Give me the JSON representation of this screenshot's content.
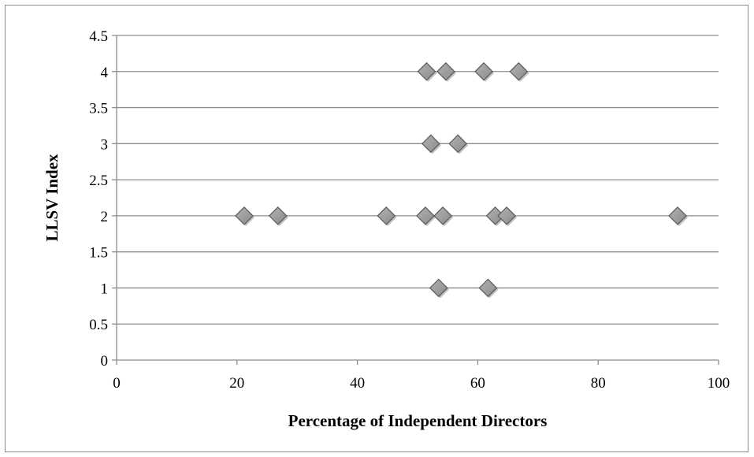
{
  "chart_data": {
    "type": "scatter",
    "title": "",
    "xlabel": "Percentage of Independent Directors",
    "ylabel": "LLSV Index",
    "xlim": [
      0,
      100
    ],
    "ylim": [
      0,
      4.5
    ],
    "xticks": [
      "0",
      "20",
      "40",
      "60",
      "80",
      "100"
    ],
    "yticks": [
      "0",
      "0.5",
      "1",
      "1.5",
      "2",
      "2.5",
      "3",
      "3.5",
      "4",
      "4.5"
    ],
    "grid": "horizontal",
    "legend": "none",
    "marker": "diamond",
    "marker_color": "#8a8a8a",
    "series": [
      {
        "points": [
          {
            "x": 51.5,
            "y": 4
          },
          {
            "x": 54.7,
            "y": 4
          },
          {
            "x": 61.0,
            "y": 4
          },
          {
            "x": 66.8,
            "y": 4
          },
          {
            "x": 52.2,
            "y": 3
          },
          {
            "x": 56.7,
            "y": 3
          },
          {
            "x": 21.2,
            "y": 2
          },
          {
            "x": 26.8,
            "y": 2
          },
          {
            "x": 44.8,
            "y": 2
          },
          {
            "x": 51.3,
            "y": 2
          },
          {
            "x": 54.2,
            "y": 2
          },
          {
            "x": 62.9,
            "y": 2
          },
          {
            "x": 64.8,
            "y": 2
          },
          {
            "x": 93.2,
            "y": 2
          },
          {
            "x": 53.5,
            "y": 1
          },
          {
            "x": 61.7,
            "y": 1
          }
        ]
      }
    ]
  }
}
